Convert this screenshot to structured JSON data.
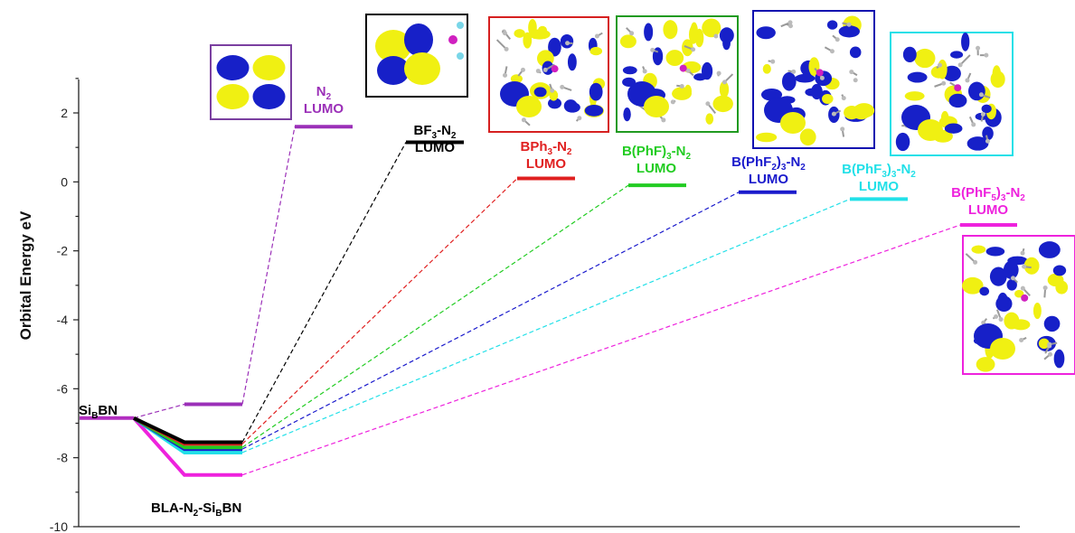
{
  "chart_data": {
    "type": "energy-level-diagram",
    "ylabel": "Orbital Energy eV",
    "ylim": [
      -10,
      3
    ],
    "yticks": [
      2,
      0,
      -2,
      -4,
      -6,
      -8,
      -10
    ],
    "series": [
      {
        "key": "n2",
        "label_main": "N",
        "label_sub": "2",
        "label_rest": "",
        "label_line2": "LUMO",
        "lumo": 1.6,
        "complex": -6.45,
        "color": "#9b30b8"
      },
      {
        "key": "bf3",
        "label_main": "BF",
        "label_sub": "3",
        "label_rest": "-N",
        "label_sub2": "2",
        "label_rest2": "",
        "label_line2": "LUMO",
        "lumo": 1.15,
        "complex": -7.55,
        "color": "#000000"
      },
      {
        "key": "bph3",
        "label_main": "BPh",
        "label_sub": "3",
        "label_rest": "-N",
        "label_sub2": "2",
        "label_rest2": "",
        "label_line2": "LUMO",
        "lumo": 0.1,
        "complex": -7.6,
        "color": "#e02020"
      },
      {
        "key": "bphf",
        "label_main": "B(PhF)",
        "label_sub": "3",
        "label_rest": "-N",
        "label_sub2": "2",
        "label_rest2": "",
        "label_line2": "LUMO",
        "lumo": -0.1,
        "complex": -7.7,
        "color": "#22cc22"
      },
      {
        "key": "bphf2",
        "label_main": "B(PhF",
        "label_sub": "2",
        "label_rest": ")",
        "label_sub2": "3",
        "label_rest2": "-N",
        "label_sub3": "2",
        "label_line2": "LUMO",
        "lumo": -0.3,
        "complex": -7.75,
        "color": "#1a1acc"
      },
      {
        "key": "bphf3",
        "label_main": "B(PhF",
        "label_sub": "3",
        "label_rest": ")",
        "label_sub2": "3",
        "label_rest2": "-N",
        "label_sub3": "2",
        "label_line2": "LUMO",
        "lumo": -0.5,
        "complex": -7.85,
        "color": "#22e0e8"
      },
      {
        "key": "bphf5",
        "label_main": "B(PhF",
        "label_sub": "5",
        "label_rest": ")",
        "label_sub2": "3",
        "label_rest2": "-N",
        "label_sub3": "2",
        "label_line2": "LUMO",
        "lumo": -1.25,
        "complex": -8.5,
        "color": "#ee22dd"
      }
    ],
    "sibn": {
      "label_main": "Si",
      "label_sub": "B",
      "label_rest": "BN",
      "energy": -6.85,
      "color": "#b22ec0"
    },
    "complex_label": {
      "label_main": "BLA-N",
      "label_sub": "2",
      "label_rest": "-Si",
      "label_sub2": "B",
      "label_rest2": "BN"
    }
  }
}
